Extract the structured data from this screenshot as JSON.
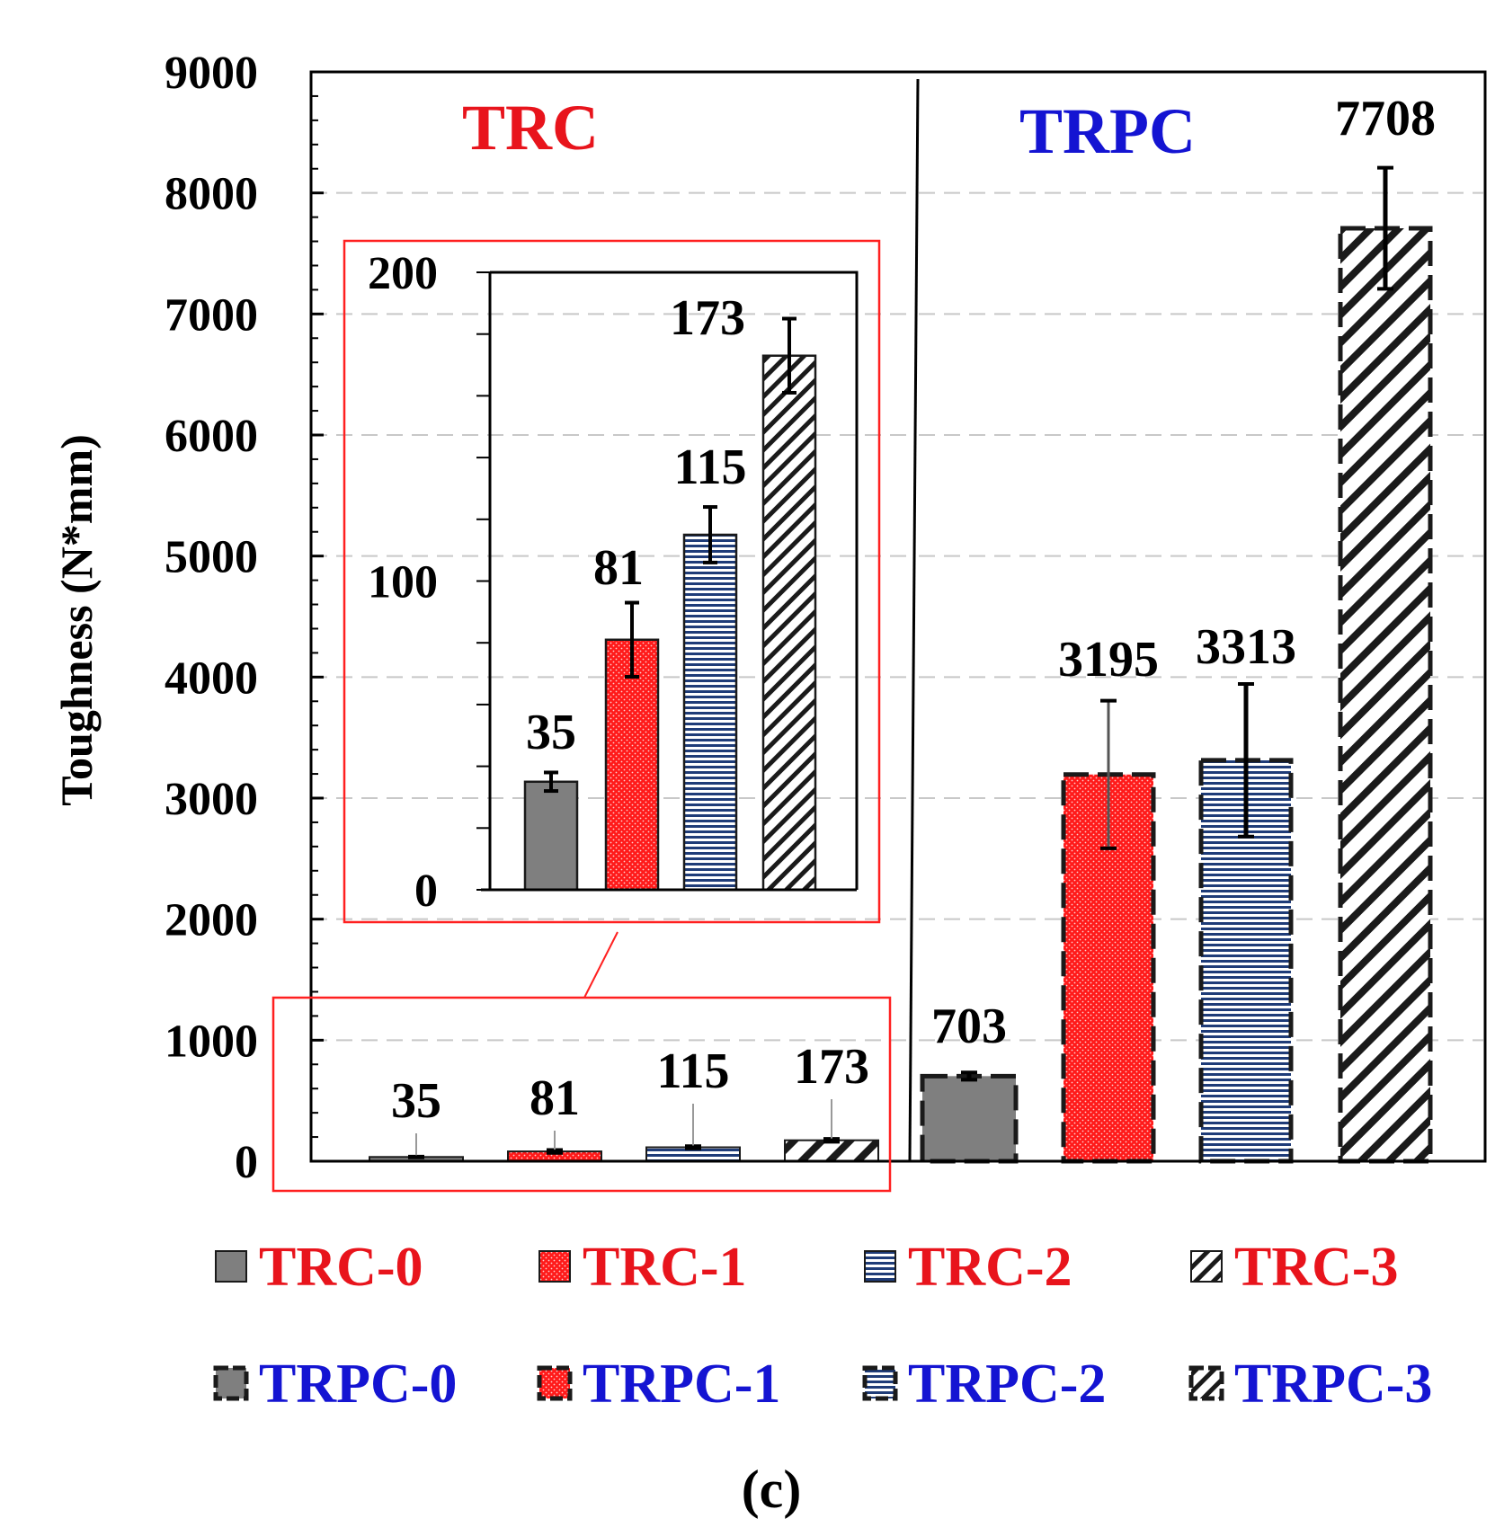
{
  "colors": {
    "trc_text": "#e8141c",
    "trpc_text": "#1414d2",
    "gray_fill": "#7f7f7f",
    "red_fill": "#ff1a1a",
    "blue_stripe": "#1f3c78",
    "axis": "#000000",
    "grid": "#c8c8c8",
    "inset_border": "#ff2020"
  },
  "chart_data": {
    "type": "bar",
    "ylabel": "Toughness (N*mm)",
    "ylim": [
      0,
      9000
    ],
    "yticks": [
      "0",
      "1000",
      "2000",
      "3000",
      "4000",
      "5000",
      "6000",
      "7000",
      "8000",
      "9000"
    ],
    "group_labels": {
      "trc": "TRC",
      "trpc": "TRPC"
    },
    "series": [
      {
        "name": "TRC-0",
        "group": "TRC",
        "value": 35,
        "error": 3,
        "label": "35",
        "pattern": "gray"
      },
      {
        "name": "TRC-1",
        "group": "TRC",
        "value": 81,
        "error": 12,
        "label": "81",
        "pattern": "red"
      },
      {
        "name": "TRC-2",
        "group": "TRC",
        "value": 115,
        "error": 9,
        "label": "115",
        "pattern": "blue"
      },
      {
        "name": "TRC-3",
        "group": "TRC",
        "value": 173,
        "error": 12,
        "label": "173",
        "pattern": "hatch"
      },
      {
        "name": "TRPC-0",
        "group": "TRPC",
        "value": 703,
        "error": 30,
        "label": "703",
        "pattern": "gray"
      },
      {
        "name": "TRPC-1",
        "group": "TRPC",
        "value": 3195,
        "error": 610,
        "label": "3195",
        "pattern": "red"
      },
      {
        "name": "TRPC-2",
        "group": "TRPC",
        "value": 3313,
        "error": 630,
        "label": "3313",
        "pattern": "blue"
      },
      {
        "name": "TRPC-3",
        "group": "TRPC",
        "value": 7708,
        "error": 500,
        "label": "7708",
        "pattern": "hatch"
      }
    ],
    "inset": {
      "ylim": [
        0,
        200
      ],
      "yticks": [
        "0",
        "100",
        "200"
      ],
      "series_refs": [
        "TRC-0",
        "TRC-1",
        "TRC-2",
        "TRC-3"
      ]
    },
    "legend": [
      "TRC-0",
      "TRC-1",
      "TRC-2",
      "TRC-3",
      "TRPC-0",
      "TRPC-1",
      "TRPC-2",
      "TRPC-3"
    ],
    "legend_placement": "bottom"
  },
  "caption": "(c)"
}
